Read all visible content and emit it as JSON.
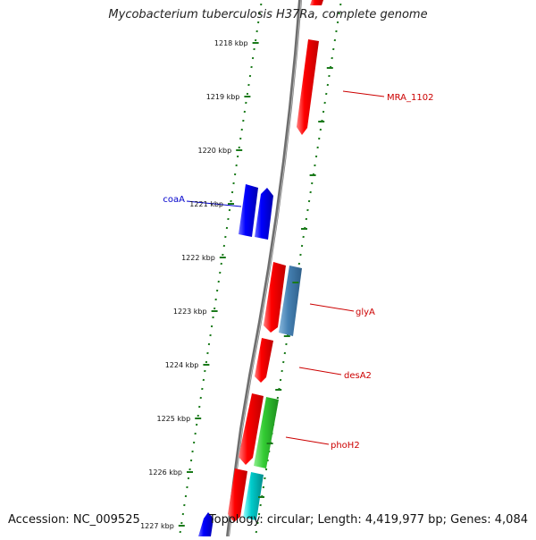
{
  "title": "Mycobacterium tuberculosis H37Ra, complete genome",
  "footer": {
    "accession": "Accession: NC_009525",
    "stats": "Topology: circular; Length: 4,419,977 bp; Genes: 4,084"
  },
  "colors": {
    "backbone": "#808080",
    "tick": "#1a7a1a",
    "gene_red": "#ff0000",
    "gene_blue": "#0000ff",
    "gene_steel": "#4682b4",
    "gene_green": "#33cc33",
    "gene_cyan": "#00cccc",
    "label_red": "#cc0000",
    "label_blue": "#0000cc"
  },
  "ticks": [
    "1218 kbp",
    "1219 kbp",
    "1220 kbp",
    "1221 kbp",
    "1222 kbp",
    "1223 kbp",
    "1224 kbp",
    "1225 kbp",
    "1226 kbp",
    "1227 kbp"
  ],
  "gene_labels": [
    "MRA_1102",
    "coaA",
    "glyA",
    "desA2",
    "phoH2"
  ]
}
